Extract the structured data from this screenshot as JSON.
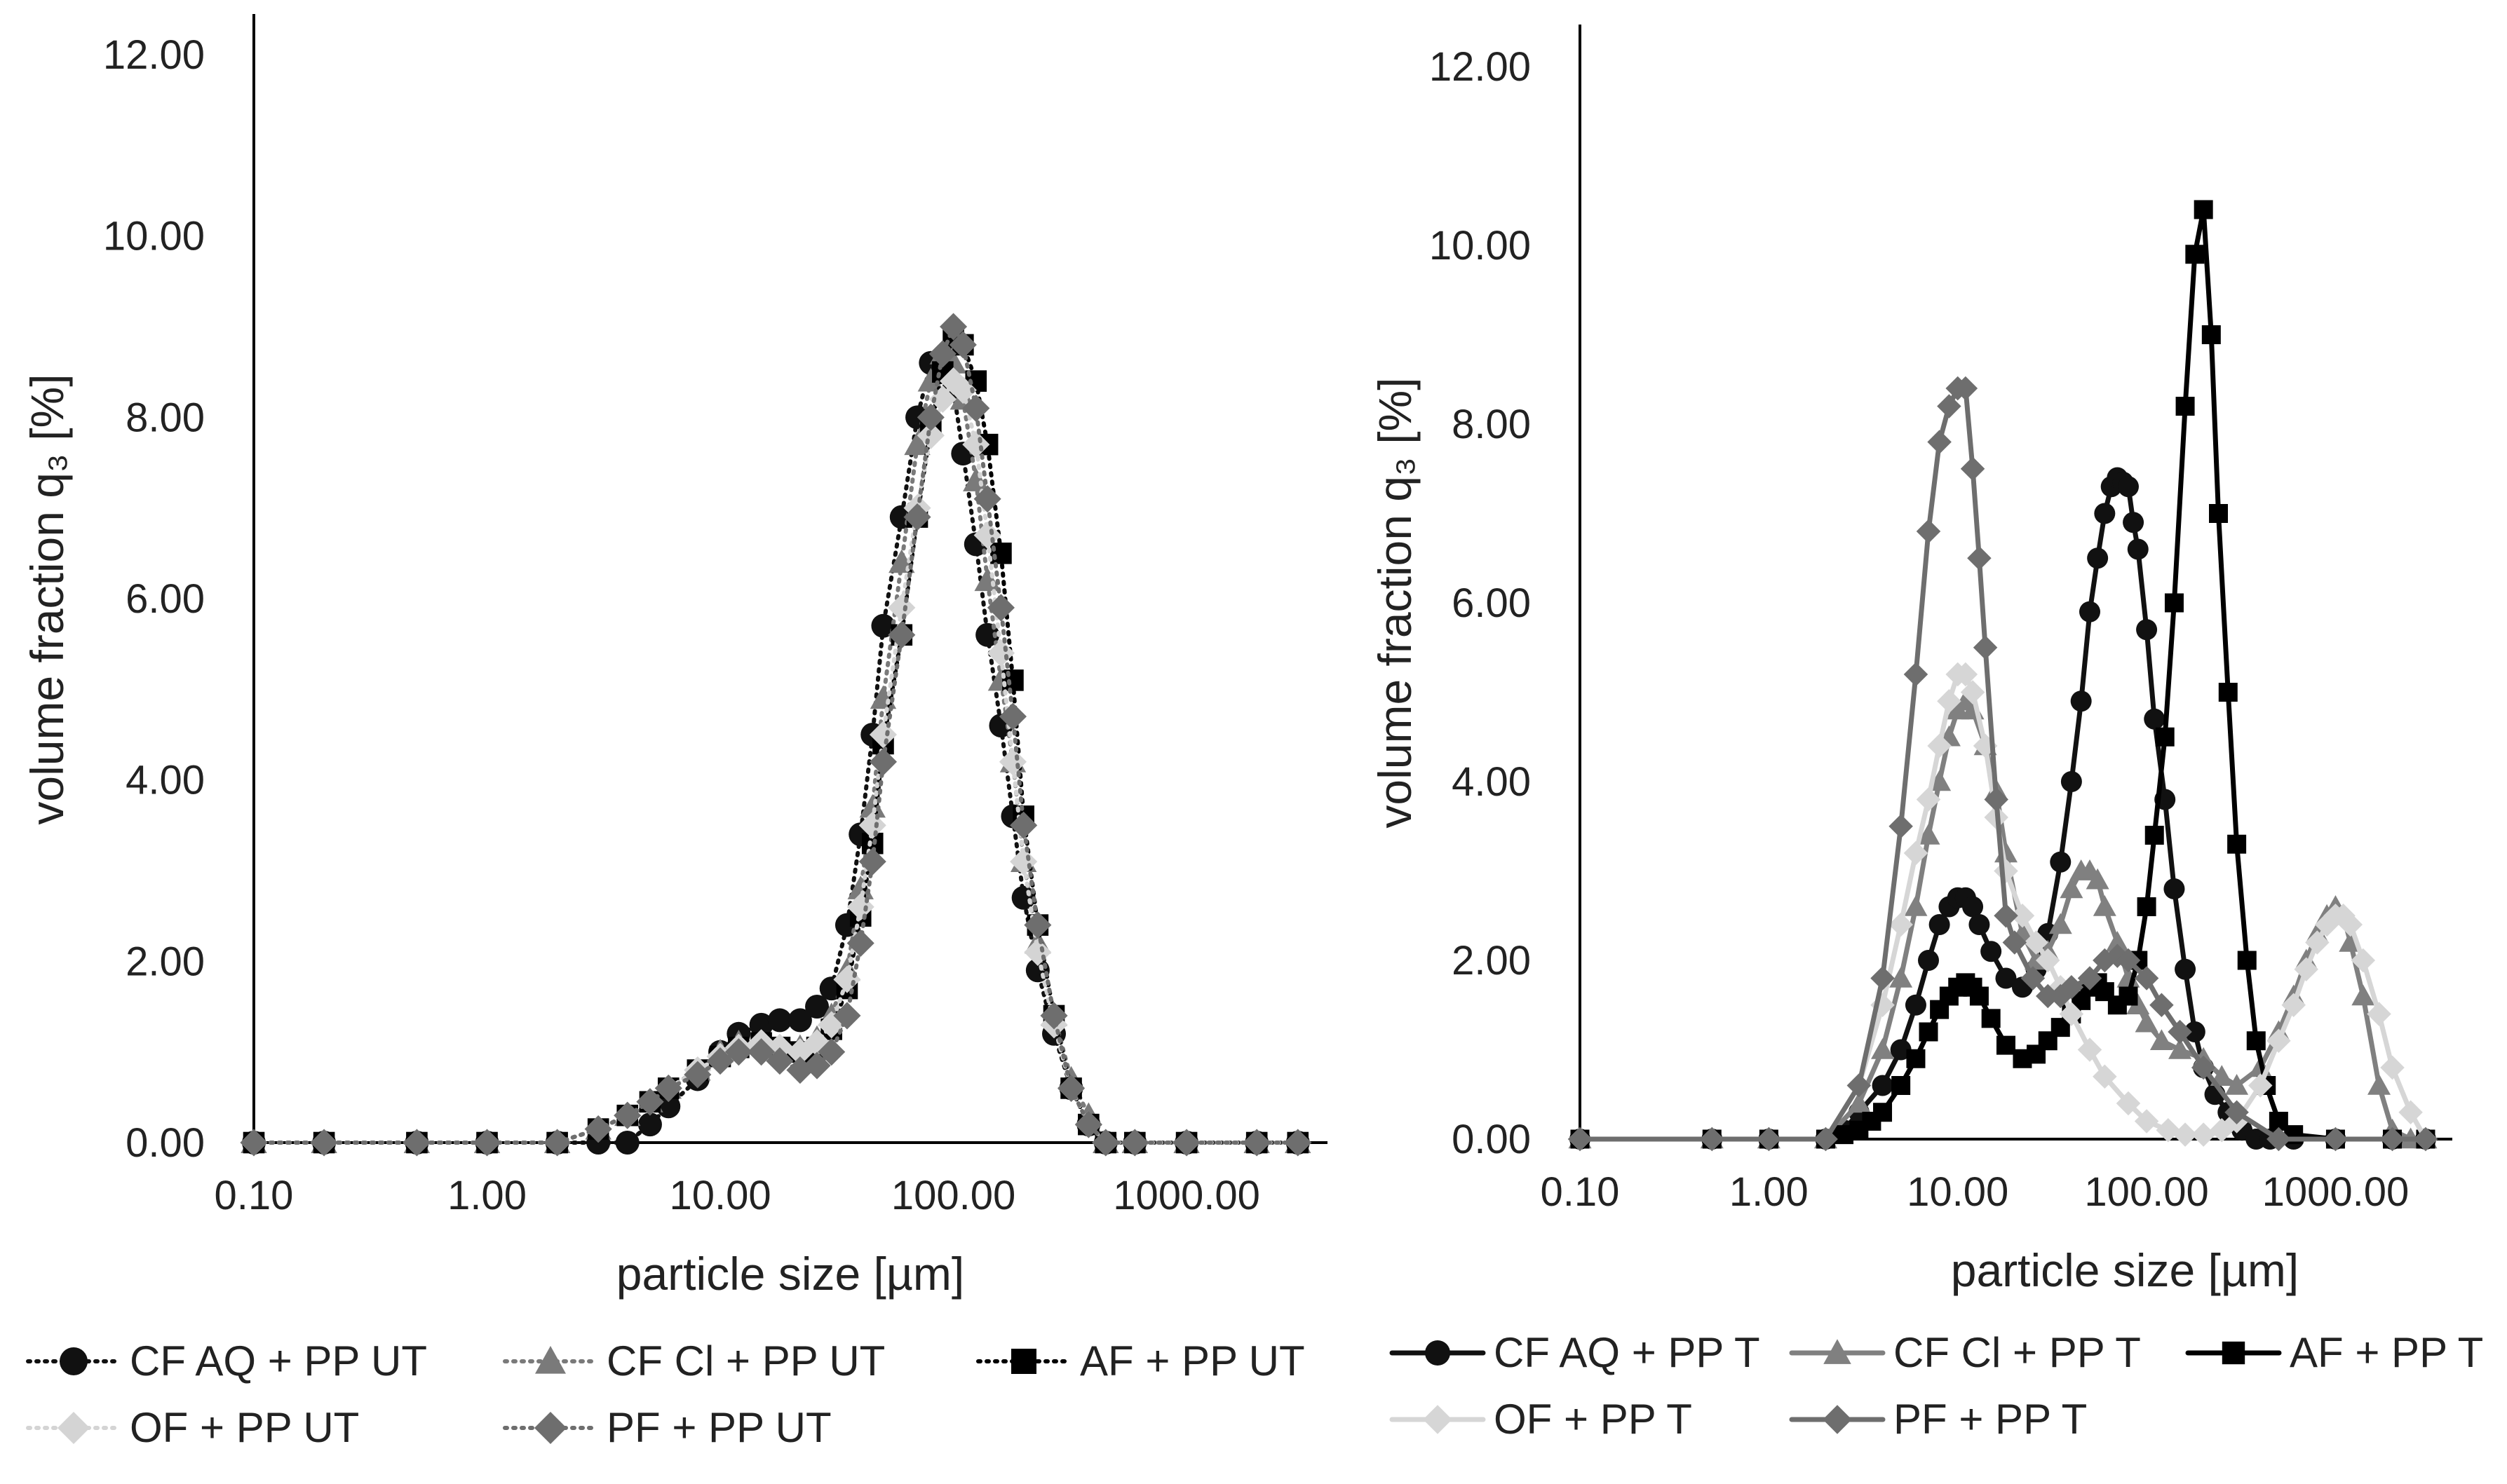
{
  "chart_data": [
    {
      "type": "line",
      "xscale": "log",
      "xlabel": "particle size [µm]",
      "ylabel": "volume fraction q₃ [%]",
      "xlim": [
        0.1,
        3500
      ],
      "ylim": [
        0,
        12
      ],
      "xtick_labels": [
        "0.10",
        "1.00",
        "10.00",
        "100.00",
        "1000.00"
      ],
      "xtick_values": [
        0.1,
        1,
        10,
        100,
        1000
      ],
      "ytick_labels": [
        "0.00",
        "2.00",
        "4.00",
        "6.00",
        "8.00",
        "10.00",
        "12.00"
      ],
      "ytick_values": [
        0,
        2,
        4,
        6,
        8,
        10,
        12
      ],
      "series": [
        {
          "name": "CF AQ + PP UT",
          "color": "#111111",
          "marker": "circle",
          "line": "dotted",
          "x": [
            0.1,
            0.2,
            0.5,
            1,
            2,
            3,
            4,
            5,
            6,
            8,
            10,
            12,
            15,
            18,
            22,
            26,
            30,
            35,
            40,
            45,
            50,
            60,
            70,
            80,
            90,
            100,
            110,
            125,
            140,
            160,
            180,
            200,
            230,
            270,
            320,
            380,
            450,
            600,
            1000,
            2000,
            3000
          ],
          "y": [
            0,
            0,
            0,
            0,
            0,
            0,
            0,
            0.2,
            0.4,
            0.7,
            1.0,
            1.2,
            1.3,
            1.35,
            1.35,
            1.5,
            1.7,
            2.4,
            3.4,
            4.5,
            5.7,
            6.9,
            8.0,
            8.6,
            8.5,
            8.3,
            7.6,
            6.6,
            5.6,
            4.6,
            3.6,
            2.7,
            1.9,
            1.2,
            0.6,
            0.2,
            0,
            0,
            0,
            0,
            0
          ]
        },
        {
          "name": "CF Cl + PP UT",
          "color": "#7a7a7a",
          "marker": "triangle",
          "line": "dotted",
          "x": [
            0.1,
            0.2,
            0.5,
            1,
            2,
            3,
            4,
            5,
            6,
            8,
            10,
            12,
            15,
            18,
            22,
            26,
            30,
            35,
            40,
            45,
            50,
            60,
            70,
            80,
            90,
            100,
            110,
            125,
            140,
            160,
            180,
            200,
            230,
            270,
            320,
            380,
            450,
            600,
            1000,
            2000,
            3000
          ],
          "y": [
            0,
            0,
            0,
            0,
            0,
            0.15,
            0.3,
            0.45,
            0.6,
            0.8,
            1.0,
            1.1,
            1.1,
            1.05,
            1.05,
            1.15,
            1.4,
            1.9,
            2.8,
            3.7,
            4.9,
            6.4,
            7.7,
            8.4,
            8.7,
            8.6,
            8.2,
            7.3,
            6.2,
            5.1,
            4.2,
            3.1,
            2.2,
            1.4,
            0.7,
            0.3,
            0,
            0,
            0,
            0,
            0
          ]
        },
        {
          "name": "AF + PP UT",
          "color": "#000000",
          "marker": "square",
          "line": "dotted",
          "x": [
            0.1,
            0.2,
            0.5,
            1,
            2,
            3,
            4,
            5,
            6,
            8,
            10,
            12,
            15,
            18,
            22,
            26,
            30,
            35,
            40,
            45,
            50,
            60,
            70,
            80,
            90,
            100,
            110,
            125,
            140,
            160,
            180,
            200,
            230,
            270,
            320,
            380,
            450,
            600,
            1000,
            2000,
            3000
          ],
          "y": [
            0,
            0,
            0,
            0,
            0,
            0.15,
            0.3,
            0.45,
            0.6,
            0.8,
            0.95,
            1.05,
            1.1,
            1.05,
            1.0,
            1.05,
            1.25,
            1.7,
            2.5,
            3.3,
            4.4,
            5.6,
            6.9,
            7.9,
            8.5,
            8.9,
            8.8,
            8.4,
            7.7,
            6.5,
            5.1,
            3.6,
            2.4,
            1.4,
            0.6,
            0.2,
            0,
            0,
            0,
            0,
            0
          ]
        },
        {
          "name": "OF + PP UT",
          "color": "#d4d4d4",
          "marker": "diamond",
          "line": "dotted",
          "x": [
            0.1,
            0.2,
            0.5,
            1,
            2,
            3,
            4,
            5,
            6,
            8,
            10,
            12,
            15,
            18,
            22,
            26,
            30,
            35,
            40,
            45,
            50,
            60,
            70,
            80,
            90,
            100,
            110,
            125,
            140,
            160,
            180,
            200,
            230,
            270,
            320,
            380,
            450,
            600,
            1000,
            2000,
            3000
          ],
          "y": [
            0,
            0,
            0,
            0,
            0,
            0.15,
            0.3,
            0.45,
            0.6,
            0.8,
            0.95,
            1.05,
            1.1,
            1.05,
            1.0,
            1.1,
            1.3,
            1.8,
            2.6,
            3.5,
            4.5,
            5.9,
            7.0,
            7.8,
            8.2,
            8.4,
            8.3,
            7.7,
            6.7,
            5.4,
            4.2,
            3.1,
            2.1,
            1.3,
            0.6,
            0.2,
            0,
            0,
            0,
            0,
            0
          ]
        },
        {
          "name": "PF + PP UT",
          "color": "#6e6e6e",
          "marker": "diamond",
          "line": "dotted",
          "x": [
            0.1,
            0.2,
            0.5,
            1,
            2,
            3,
            4,
            5,
            6,
            8,
            10,
            12,
            15,
            18,
            22,
            26,
            30,
            35,
            40,
            45,
            50,
            60,
            70,
            80,
            90,
            100,
            110,
            125,
            140,
            160,
            180,
            200,
            230,
            270,
            320,
            380,
            450,
            600,
            1000,
            2000,
            3000
          ],
          "y": [
            0,
            0,
            0,
            0,
            0,
            0.15,
            0.3,
            0.45,
            0.6,
            0.75,
            0.9,
            1.0,
            1.0,
            0.9,
            0.8,
            0.85,
            1.0,
            1.4,
            2.2,
            3.1,
            4.2,
            5.6,
            6.9,
            8.0,
            8.7,
            9.0,
            8.8,
            8.1,
            7.1,
            5.9,
            4.7,
            3.5,
            2.4,
            1.4,
            0.6,
            0.2,
            0,
            0,
            0,
            0,
            0
          ]
        }
      ],
      "legend": "bottom"
    },
    {
      "type": "line",
      "xscale": "log",
      "xlabel": "particle size [µm]",
      "ylabel": "volume fraction q₃ [%]",
      "xlim": [
        0.1,
        3500
      ],
      "ylim": [
        0,
        12
      ],
      "xtick_labels": [
        "0.10",
        "1.00",
        "10.00",
        "100.00",
        "1000.00"
      ],
      "xtick_values": [
        0.1,
        1,
        10,
        100,
        1000
      ],
      "ytick_labels": [
        "0.00",
        "2.00",
        "4.00",
        "6.00",
        "8.00",
        "10.00",
        "12.00"
      ],
      "ytick_values": [
        0,
        2,
        4,
        6,
        8,
        10,
        12
      ],
      "series": [
        {
          "name": "CF AQ + PP T",
          "color": "#111111",
          "marker": "circle",
          "line": "solid",
          "x": [
            0.1,
            0.5,
            1,
            2,
            2.5,
            3,
            4,
            5,
            6,
            7,
            8,
            9,
            10,
            11,
            12,
            13,
            15,
            18,
            22,
            26,
            30,
            35,
            40,
            45,
            50,
            55,
            60,
            65,
            70,
            75,
            80,
            85,
            90,
            100,
            110,
            125,
            140,
            160,
            180,
            200,
            230,
            270,
            320,
            380,
            450,
            600,
            1000,
            2000,
            3000
          ],
          "y": [
            0,
            0,
            0,
            0,
            0.1,
            0.3,
            0.6,
            1.0,
            1.5,
            2.0,
            2.4,
            2.6,
            2.7,
            2.7,
            2.6,
            2.4,
            2.1,
            1.8,
            1.7,
            1.9,
            2.3,
            3.1,
            4.0,
            4.9,
            5.9,
            6.5,
            7.0,
            7.3,
            7.4,
            7.35,
            7.3,
            6.9,
            6.6,
            5.7,
            4.7,
            3.8,
            2.8,
            1.9,
            1.2,
            0.8,
            0.5,
            0.3,
            0.1,
            0,
            0,
            0,
            0,
            0,
            0
          ]
        },
        {
          "name": "CF Cl + PP T",
          "color": "#808080",
          "marker": "triangle",
          "line": "solid",
          "x": [
            0.1,
            0.5,
            1,
            2,
            3,
            4,
            5,
            6,
            7,
            8,
            9,
            10,
            11,
            12,
            14,
            16,
            18,
            22,
            26,
            30,
            35,
            40,
            45,
            50,
            55,
            60,
            70,
            80,
            90,
            100,
            120,
            150,
            200,
            250,
            300,
            400,
            500,
            600,
            700,
            800,
            900,
            1000,
            1100,
            1200,
            1400,
            1700,
            2000,
            2500,
            3000
          ],
          "y": [
            0,
            0,
            0,
            0,
            0.4,
            1.0,
            1.8,
            2.6,
            3.4,
            4.0,
            4.5,
            4.8,
            4.9,
            4.8,
            4.4,
            3.9,
            3.2,
            2.3,
            2.0,
            2.1,
            2.4,
            2.8,
            3.0,
            3.0,
            2.9,
            2.6,
            2.2,
            1.8,
            1.5,
            1.3,
            1.1,
            1.0,
            0.9,
            0.7,
            0.6,
            0.8,
            1.2,
            1.6,
            2.0,
            2.3,
            2.5,
            2.6,
            2.5,
            2.2,
            1.6,
            0.6,
            0.1,
            0,
            0
          ]
        },
        {
          "name": "AF + PP T",
          "color": "#000000",
          "marker": "square",
          "line": "solid",
          "x": [
            0.1,
            0.5,
            1,
            2,
            2.5,
            3,
            3.5,
            4,
            5,
            6,
            7,
            8,
            9,
            10,
            11,
            12,
            13,
            15,
            18,
            22,
            26,
            30,
            35,
            40,
            45,
            50,
            55,
            60,
            70,
            80,
            90,
            100,
            110,
            125,
            140,
            160,
            180,
            200,
            220,
            240,
            270,
            300,
            340,
            380,
            430,
            500,
            600,
            1000,
            2000,
            3000
          ],
          "y": [
            0,
            0,
            0,
            0,
            0.05,
            0.1,
            0.2,
            0.3,
            0.6,
            0.9,
            1.2,
            1.45,
            1.6,
            1.7,
            1.75,
            1.7,
            1.6,
            1.35,
            1.05,
            0.9,
            0.95,
            1.1,
            1.25,
            1.4,
            1.55,
            1.7,
            1.75,
            1.65,
            1.5,
            1.6,
            2.0,
            2.6,
            3.4,
            4.5,
            6.0,
            8.2,
            9.9,
            10.4,
            9.0,
            7.0,
            5.0,
            3.3,
            2.0,
            1.1,
            0.6,
            0.2,
            0.05,
            0,
            0,
            0
          ]
        },
        {
          "name": "OF + PP T",
          "color": "#d6d6d6",
          "marker": "diamond",
          "line": "solid",
          "x": [
            0.1,
            0.5,
            1,
            2,
            3,
            4,
            5,
            6,
            7,
            8,
            9,
            10,
            11,
            12,
            14,
            16,
            18,
            22,
            26,
            30,
            35,
            40,
            50,
            60,
            80,
            100,
            130,
            160,
            200,
            250,
            300,
            400,
            500,
            600,
            700,
            800,
            900,
            1000,
            1100,
            1200,
            1400,
            1700,
            2000,
            2500,
            3000
          ],
          "y": [
            0,
            0,
            0,
            0,
            0.6,
            1.5,
            2.4,
            3.2,
            3.8,
            4.4,
            4.9,
            5.2,
            5.2,
            5.0,
            4.4,
            3.6,
            3.0,
            2.5,
            2.2,
            2.0,
            1.7,
            1.4,
            1.0,
            0.7,
            0.4,
            0.2,
            0.1,
            0.05,
            0.05,
            0.1,
            0.2,
            0.6,
            1.1,
            1.5,
            1.9,
            2.2,
            2.4,
            2.5,
            2.5,
            2.4,
            2.0,
            1.4,
            0.8,
            0.3,
            0
          ]
        },
        {
          "name": "PF + PP T",
          "color": "#6e6e6e",
          "marker": "diamond",
          "line": "solid",
          "x": [
            0.1,
            0.5,
            1,
            2,
            3,
            4,
            5,
            6,
            7,
            8,
            9,
            10,
            11,
            12,
            13,
            14,
            16,
            18,
            20,
            25,
            30,
            35,
            40,
            50,
            60,
            70,
            80,
            100,
            120,
            150,
            200,
            300,
            500,
            1000,
            2000,
            3000
          ],
          "y": [
            0,
            0,
            0,
            0,
            0.6,
            1.8,
            3.5,
            5.2,
            6.8,
            7.8,
            8.2,
            8.4,
            8.4,
            7.5,
            6.5,
            5.5,
            3.8,
            2.5,
            2.2,
            1.8,
            1.6,
            1.6,
            1.7,
            1.8,
            2.0,
            2.05,
            2.0,
            1.8,
            1.5,
            1.2,
            0.8,
            0.3,
            0,
            0,
            0,
            0
          ]
        }
      ],
      "legend": "bottom"
    }
  ]
}
